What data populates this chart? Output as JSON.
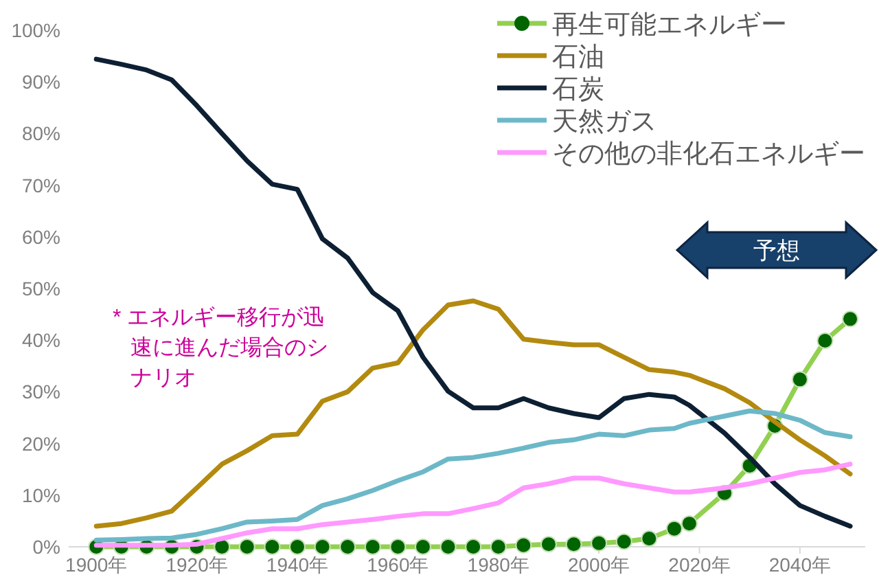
{
  "chart_data": {
    "type": "line",
    "x": [
      1900,
      1905,
      1910,
      1915,
      1920,
      1925,
      1930,
      1935,
      1940,
      1945,
      1950,
      1955,
      1960,
      1965,
      1970,
      1975,
      1980,
      1985,
      1990,
      1995,
      2000,
      2005,
      2010,
      2015,
      2018,
      2025,
      2030,
      2035,
      2040,
      2045,
      2050
    ],
    "series": [
      {
        "name": "再生可能エネルギー",
        "color": "#92d050",
        "marker": "circle",
        "values": [
          0,
          0,
          0,
          0,
          0,
          0,
          0,
          0,
          0,
          0,
          0,
          0,
          0,
          0,
          0,
          0,
          0,
          0.3,
          0.5,
          0.5,
          0.7,
          1.0,
          1.6,
          3.5,
          4.5,
          10.4,
          15.7,
          23.4,
          32.4,
          39.9,
          44.1
        ]
      },
      {
        "name": "石油",
        "color": "#b38a0f",
        "values": [
          4,
          4.5,
          5.6,
          6.9,
          11.4,
          16,
          18.6,
          21.5,
          21.8,
          28.2,
          30,
          34.6,
          35.6,
          42,
          46.8,
          47.6,
          46,
          40.2,
          39.6,
          39.1,
          39.1,
          36.7,
          34.3,
          33.8,
          33.2,
          30.6,
          27.9,
          24.2,
          20.7,
          17.6,
          14.1
        ]
      },
      {
        "name": "石炭",
        "color": "#0d1f33",
        "values": [
          94.4,
          93.4,
          92.3,
          90.4,
          85.4,
          80,
          74.7,
          70.2,
          69.2,
          59.6,
          55.9,
          49.2,
          45.7,
          36.7,
          30.1,
          26.9,
          26.9,
          28.7,
          26.9,
          25.8,
          25,
          28.7,
          29.5,
          29,
          27.4,
          22,
          17.3,
          12.2,
          8,
          5.9,
          4
        ]
      },
      {
        "name": "天然ガス",
        "color": "#6cb8c8",
        "values": [
          1.3,
          1.4,
          1.6,
          1.7,
          2.4,
          3.5,
          4.8,
          5,
          5.3,
          8,
          9.3,
          10.9,
          12.8,
          14.5,
          17,
          17.3,
          18.1,
          19.1,
          20.2,
          20.7,
          21.8,
          21.5,
          22.6,
          22.9,
          23.9,
          25.3,
          26.3,
          25.8,
          24.5,
          22.1,
          21.3
        ]
      },
      {
        "name": "その他の非化石エネルギー",
        "color": "#ff99ff",
        "values": [
          0.3,
          0.3,
          0.3,
          0.3,
          0.5,
          1.6,
          2.7,
          3.5,
          3.5,
          4.3,
          4.8,
          5.3,
          5.9,
          6.4,
          6.4,
          7.4,
          8.5,
          11.4,
          12.2,
          13.3,
          13.3,
          12.2,
          11.4,
          10.6,
          10.6,
          11.4,
          12.2,
          13.3,
          14.4,
          14.9,
          16
        ]
      }
    ],
    "xlim": [
      1894.5,
      2053
    ],
    "xticks": [
      {
        "value": 1900,
        "label": "1900年"
      },
      {
        "value": 1920,
        "label": "1920年"
      },
      {
        "value": 1940,
        "label": "1940年"
      },
      {
        "value": 1960,
        "label": "1960年"
      },
      {
        "value": 1980,
        "label": "1980年"
      },
      {
        "value": 2000,
        "label": "2000年"
      },
      {
        "value": 2020,
        "label": "2020年"
      },
      {
        "value": 2040,
        "label": "2040年"
      }
    ],
    "ylim": [
      0,
      100
    ],
    "yticks": [
      {
        "value": 0,
        "label": "0%"
      },
      {
        "value": 10,
        "label": "10%"
      },
      {
        "value": 20,
        "label": "20%"
      },
      {
        "value": 30,
        "label": "30%"
      },
      {
        "value": 40,
        "label": "40%"
      },
      {
        "value": 50,
        "label": "50%"
      },
      {
        "value": 60,
        "label": "60%"
      },
      {
        "value": 70,
        "label": "70%"
      },
      {
        "value": 80,
        "label": "80%"
      },
      {
        "value": 90,
        "label": "90%"
      },
      {
        "value": 100,
        "label": "100%"
      }
    ],
    "annotations": [
      "* エネルギー移行が迅速に進んだ場合のシナリオ",
      "予想"
    ],
    "grid": false,
    "legend": "top right",
    "line_style": "solid"
  }
}
